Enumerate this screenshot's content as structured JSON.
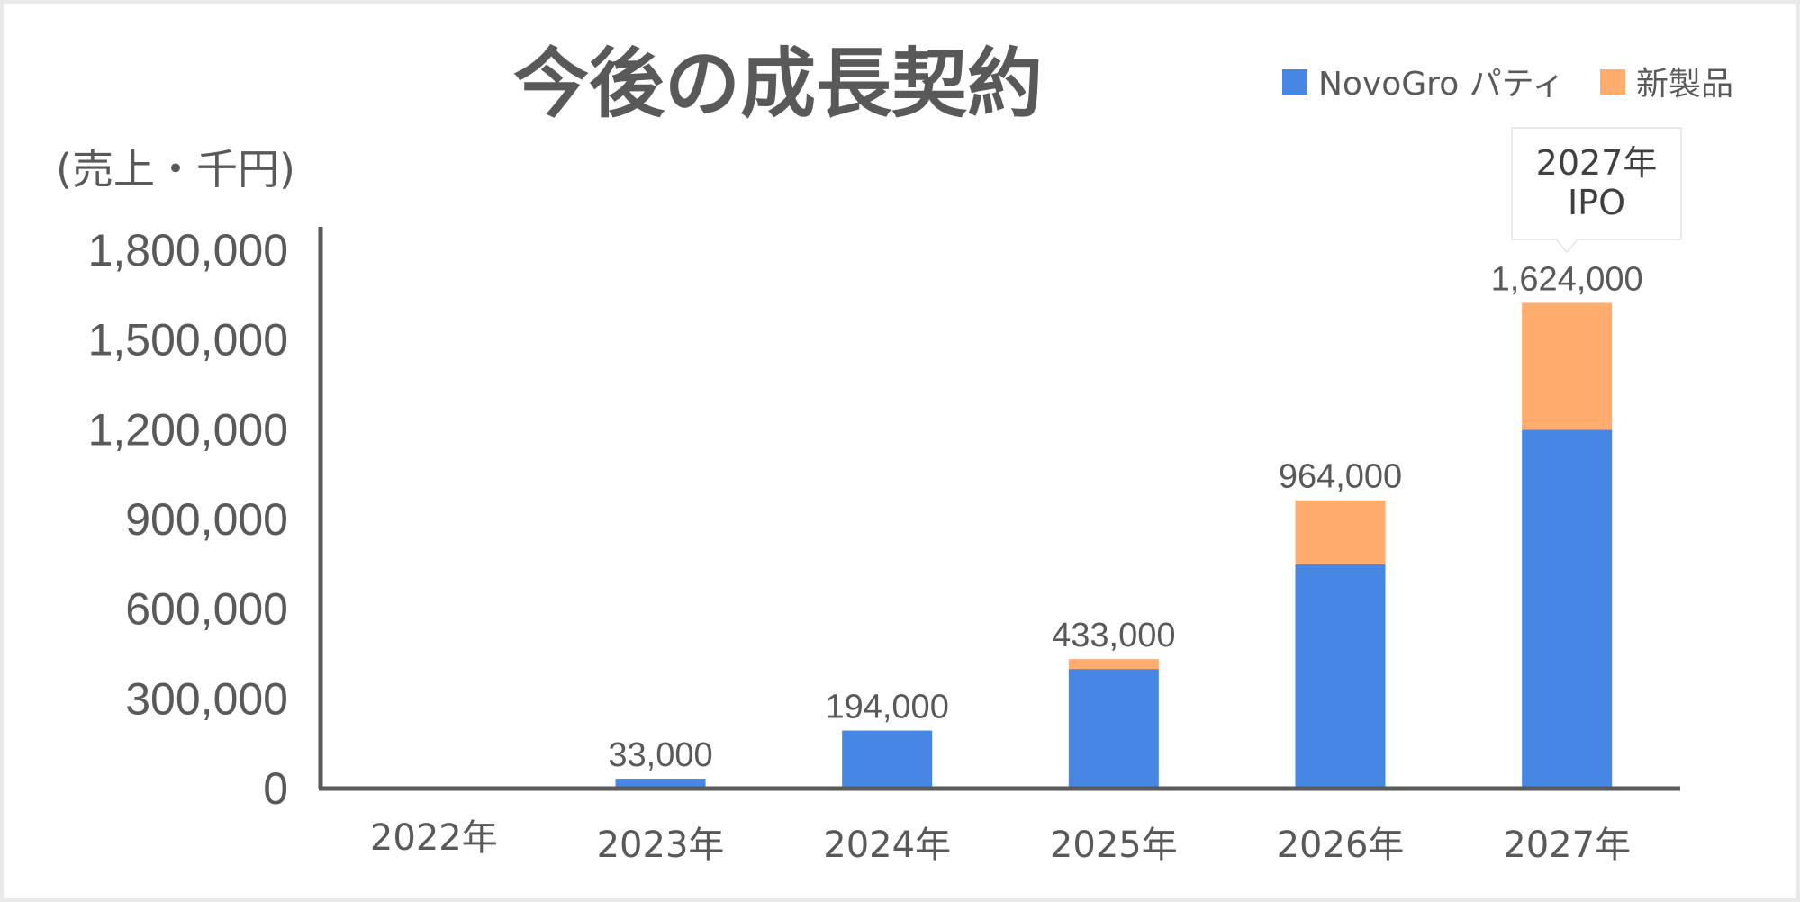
{
  "chart_data": {
    "type": "bar",
    "stacked": true,
    "title": "今後の成長契約",
    "ylabel": "(売上・千円)",
    "categories": [
      "2022年",
      "2023年",
      "2024年",
      "2025年",
      "2026年",
      "2027年"
    ],
    "series": [
      {
        "name": "NovoGro パティ",
        "color": "#4886e3",
        "values": [
          0,
          33000,
          194000,
          400000,
          750000,
          1200000
        ]
      },
      {
        "name": "新製品",
        "color": "#ffac6e",
        "values": [
          0,
          0,
          0,
          33000,
          214000,
          424000
        ]
      }
    ],
    "totals": [
      null,
      33000,
      194000,
      433000,
      964000,
      1624000
    ],
    "total_labels": [
      "",
      "33,000",
      "194,000",
      "433,000",
      "964,000",
      "1,624,000"
    ],
    "ylim": [
      0,
      1800000
    ],
    "yticks": [
      0,
      300000,
      600000,
      900000,
      1200000,
      1500000,
      1800000
    ],
    "ytick_labels": [
      "0",
      "300,000",
      "600,000",
      "900,000",
      "1,200,000",
      "1,500,000",
      "1,800,000"
    ],
    "legend_position": "top-right",
    "grid": false,
    "annotation": {
      "category": "2027年",
      "lines": [
        "2027年",
        "IPO"
      ]
    }
  }
}
